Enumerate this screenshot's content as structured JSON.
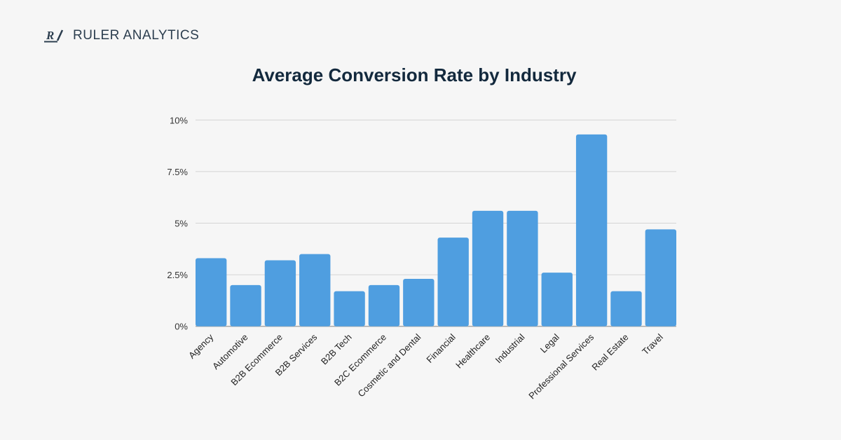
{
  "brand": {
    "name": "RULER ANALYTICS",
    "logo_mark": "R/",
    "color": "#2c3e4f"
  },
  "chart_data": {
    "type": "bar",
    "title": "Average Conversion Rate by Industry",
    "xlabel": "",
    "ylabel": "",
    "categories": [
      "Agency",
      "Automotive",
      "B2B Ecommerce",
      "B2B Services",
      "B2B Tech",
      "B2C Ecommerce",
      "Cosmetic and Dental",
      "Financial",
      "Healthcare",
      "Industrial",
      "Legal",
      "Professional Services",
      "Real Estate",
      "Travel"
    ],
    "values": [
      3.3,
      2.0,
      3.2,
      3.5,
      1.7,
      2.0,
      2.3,
      4.3,
      5.6,
      5.6,
      2.6,
      9.3,
      1.7,
      4.7
    ],
    "unit": "%",
    "ylim": [
      0,
      10
    ],
    "yticks": [
      0,
      2.5,
      5,
      7.5,
      10
    ],
    "ytick_labels": [
      "0%",
      "2.5%",
      "5%",
      "7.5%",
      "10%"
    ],
    "grid": true,
    "legend": "none",
    "bar_color": "#4f9ee0"
  }
}
